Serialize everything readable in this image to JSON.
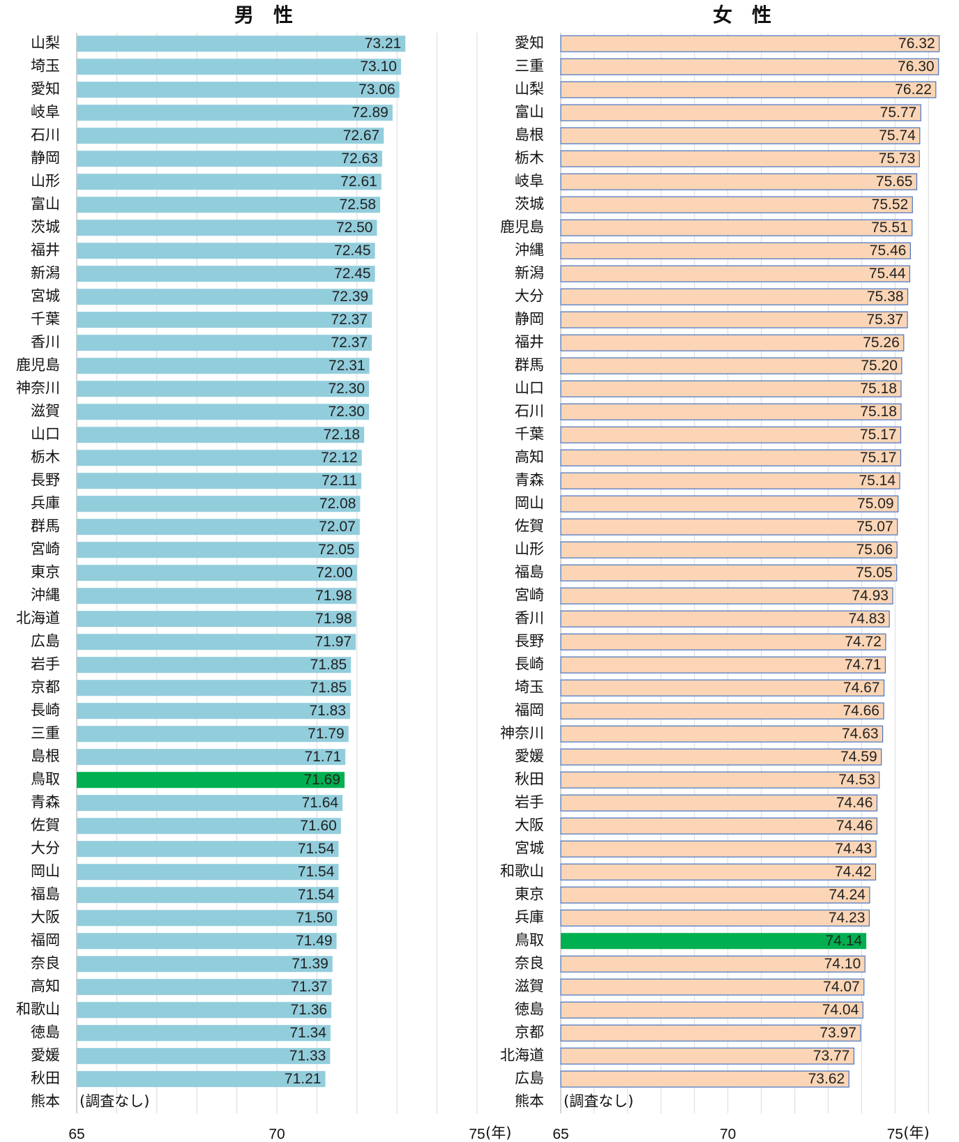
{
  "chart_data": [
    {
      "type": "bar",
      "orientation": "horizontal",
      "title": "男　性",
      "categories": [
        "山梨",
        "埼玉",
        "愛知",
        "岐阜",
        "石川",
        "静岡",
        "山形",
        "富山",
        "茨城",
        "福井",
        "新潟",
        "宮城",
        "千葉",
        "香川",
        "鹿児島",
        "神奈川",
        "滋賀",
        "山口",
        "栃木",
        "長野",
        "兵庫",
        "群馬",
        "宮崎",
        "東京",
        "沖縄",
        "北海道",
        "広島",
        "岩手",
        "京都",
        "長崎",
        "三重",
        "島根",
        "鳥取",
        "青森",
        "佐賀",
        "大分",
        "岡山",
        "福島",
        "大阪",
        "福岡",
        "奈良",
        "高知",
        "和歌山",
        "徳島",
        "愛媛",
        "秋田",
        "熊本"
      ],
      "values": [
        73.21,
        73.1,
        73.06,
        72.89,
        72.67,
        72.63,
        72.61,
        72.58,
        72.5,
        72.45,
        72.45,
        72.39,
        72.37,
        72.37,
        72.31,
        72.3,
        72.3,
        72.18,
        72.12,
        72.11,
        72.08,
        72.07,
        72.05,
        72.0,
        71.98,
        71.98,
        71.97,
        71.85,
        71.85,
        71.83,
        71.79,
        71.71,
        71.69,
        71.64,
        71.6,
        71.54,
        71.54,
        71.54,
        71.5,
        71.49,
        71.39,
        71.37,
        71.36,
        71.34,
        71.33,
        71.21,
        null
      ],
      "value_labels": [
        "73.21",
        "73.10",
        "73.06",
        "72.89",
        "72.67",
        "72.63",
        "72.61",
        "72.58",
        "72.50",
        "72.45",
        "72.45",
        "72.39",
        "72.37",
        "72.37",
        "72.31",
        "72.30",
        "72.30",
        "72.18",
        "72.12",
        "72.11",
        "72.08",
        "72.07",
        "72.05",
        "72.00",
        "71.98",
        "71.98",
        "71.97",
        "71.85",
        "71.85",
        "71.83",
        "71.79",
        "71.71",
        "71.69",
        "71.64",
        "71.60",
        "71.54",
        "71.54",
        "71.54",
        "71.50",
        "71.49",
        "71.39",
        "71.37",
        "71.36",
        "71.34",
        "71.33",
        "71.21",
        null
      ],
      "color": "#92cddc",
      "border": null,
      "highlight": {
        "category": "鳥取",
        "color": "#00b050"
      },
      "note": "(調査なし)",
      "x_unit": "(年)",
      "xlim": [
        65,
        75
      ],
      "xticks": [
        65,
        70,
        75
      ],
      "x_minor_gridlines": [
        66,
        67,
        68,
        69,
        71,
        72,
        73,
        74
      ],
      "grid": true
    },
    {
      "type": "bar",
      "orientation": "horizontal",
      "title": "女　性",
      "categories": [
        "愛知",
        "三重",
        "山梨",
        "富山",
        "島根",
        "栃木",
        "岐阜",
        "茨城",
        "鹿児島",
        "沖縄",
        "新潟",
        "大分",
        "静岡",
        "福井",
        "群馬",
        "山口",
        "石川",
        "千葉",
        "高知",
        "青森",
        "岡山",
        "佐賀",
        "山形",
        "福島",
        "宮崎",
        "香川",
        "長野",
        "長崎",
        "埼玉",
        "福岡",
        "神奈川",
        "愛媛",
        "秋田",
        "岩手",
        "大阪",
        "宮城",
        "和歌山",
        "東京",
        "兵庫",
        "鳥取",
        "奈良",
        "滋賀",
        "徳島",
        "京都",
        "北海道",
        "広島",
        "熊本"
      ],
      "values": [
        76.32,
        76.3,
        76.22,
        75.77,
        75.74,
        75.73,
        75.65,
        75.52,
        75.51,
        75.46,
        75.44,
        75.38,
        75.37,
        75.26,
        75.2,
        75.18,
        75.18,
        75.17,
        75.17,
        75.14,
        75.09,
        75.07,
        75.06,
        75.05,
        74.93,
        74.83,
        74.72,
        74.71,
        74.67,
        74.66,
        74.63,
        74.59,
        74.53,
        74.46,
        74.46,
        74.43,
        74.42,
        74.24,
        74.23,
        74.14,
        74.1,
        74.07,
        74.04,
        73.97,
        73.77,
        73.62,
        null
      ],
      "value_labels": [
        "76.32",
        "76.30",
        "76.22",
        "75.77",
        "75.74",
        "75.73",
        "75.65",
        "75.52",
        "75.51",
        "75.46",
        "75.44",
        "75.38",
        "75.37",
        "75.26",
        "75.20",
        "75.18",
        "75.18",
        "75.17",
        "75.17",
        "75.14",
        "75.09",
        "75.07",
        "75.06",
        "75.05",
        "74.93",
        "74.83",
        "74.72",
        "74.71",
        "74.67",
        "74.66",
        "74.63",
        "74.59",
        "74.53",
        "74.46",
        "74.46",
        "74.43",
        "74.42",
        "74.24",
        "74.23",
        "74.14",
        "74.10",
        "74.07",
        "74.04",
        "73.97",
        "73.77",
        "73.62",
        null
      ],
      "color": "#fbd5b5",
      "border": "#4472c4",
      "highlight": {
        "category": "鳥取",
        "color": "#00b050"
      },
      "note": "(調査なし)",
      "x_unit": "(年)",
      "xlim": [
        65,
        76.6
      ],
      "xticks": [
        65,
        70,
        75
      ],
      "x_minor_gridlines": [
        66,
        67,
        68,
        69,
        71,
        72,
        73,
        74,
        76
      ],
      "grid": true
    }
  ]
}
